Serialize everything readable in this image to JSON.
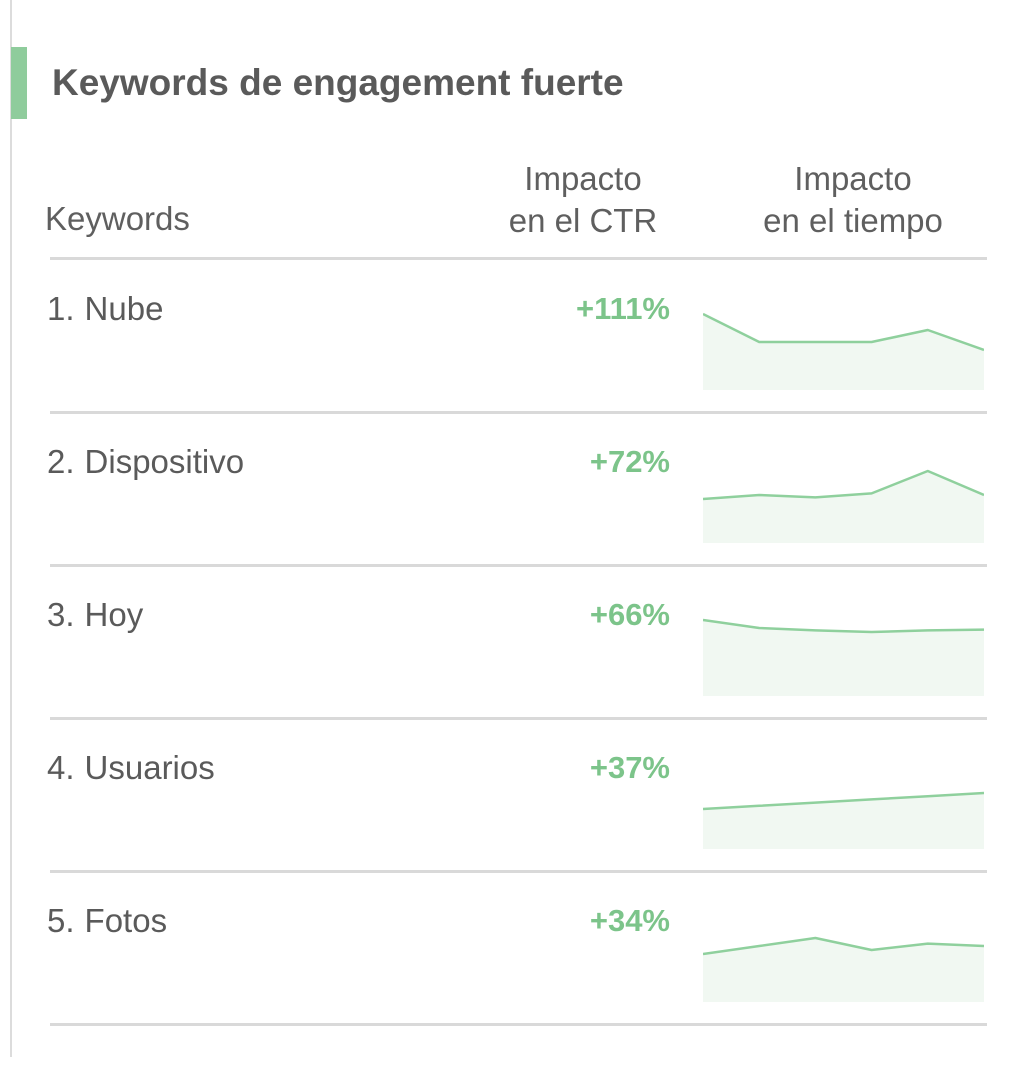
{
  "panel": {
    "title": "Keywords de engagement fuerte",
    "accent_color": "#8fcc9c"
  },
  "columns": {
    "keywords": "Keywords",
    "ctr_line1": "Impacto",
    "ctr_line2": "en el CTR",
    "time_line1": "Impacto",
    "time_line2": "en el tiempo"
  },
  "sparkline_style": {
    "line_color": "#8fd09d",
    "fill_color": "#f1f8f2"
  },
  "rows": [
    {
      "rank": "1.",
      "keyword": "Nube",
      "ctr": "+111%",
      "trend": [
        9.5,
        6.0,
        6.0,
        6.0,
        7.5,
        5.0
      ]
    },
    {
      "rank": "2.",
      "keyword": "Dispositivo",
      "ctr": "+72%",
      "trend": [
        5.5,
        6.0,
        5.7,
        6.2,
        9.0,
        6.0
      ]
    },
    {
      "rank": "3.",
      "keyword": "Hoy",
      "ctr": "+66%",
      "trend": [
        9.5,
        8.5,
        8.2,
        8.0,
        8.2,
        8.3
      ]
    },
    {
      "rank": "4.",
      "keyword": "Usuarios",
      "ctr": "+37%",
      "trend": [
        5.0,
        5.4,
        5.8,
        6.2,
        6.6,
        7.0
      ]
    },
    {
      "rank": "5.",
      "keyword": "Fotos",
      "ctr": "+34%",
      "trend": [
        6.0,
        7.0,
        8.0,
        6.5,
        7.3,
        7.0
      ]
    }
  ]
}
